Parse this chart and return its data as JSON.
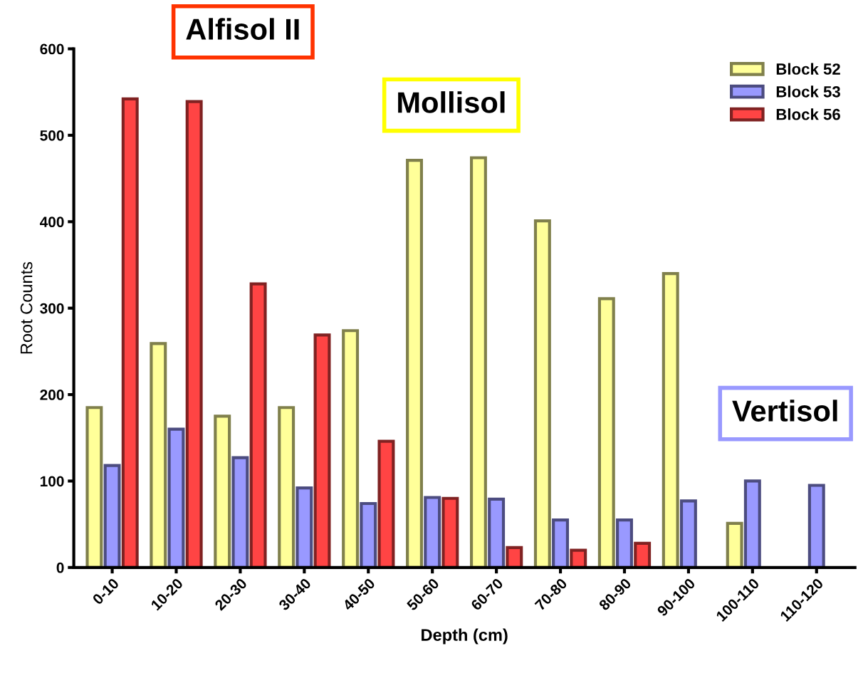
{
  "chart_data": {
    "type": "bar",
    "xlabel": "Depth (cm)",
    "ylabel": "Root Counts",
    "categories": [
      "0-10",
      "10-20",
      "20-30",
      "30-40",
      "40-50",
      "50-60",
      "60-70",
      "70-80",
      "80-90",
      "90-100",
      "100-110",
      "110-120"
    ],
    "series": [
      {
        "name": "Block 52",
        "color": "#ffff99",
        "values": [
          185,
          259,
          175,
          185,
          274,
          471,
          474,
          401,
          311,
          340,
          51,
          null
        ]
      },
      {
        "name": "Block 53",
        "color": "#9999ff",
        "values": [
          118,
          160,
          127,
          92,
          74,
          81,
          79,
          55,
          55,
          77,
          100,
          95
        ]
      },
      {
        "name": "Block 56",
        "color": "#ff4444",
        "values": [
          542,
          539,
          328,
          269,
          146,
          80,
          23,
          20,
          28,
          null,
          null,
          null
        ]
      }
    ],
    "ylim": [
      0,
      600
    ],
    "yticks": [
      0,
      100,
      200,
      300,
      400,
      500,
      600
    ],
    "legend": "top right",
    "grid": false,
    "annotations": [
      "Alfisol II",
      "Mollisol",
      "Vertisol"
    ]
  }
}
